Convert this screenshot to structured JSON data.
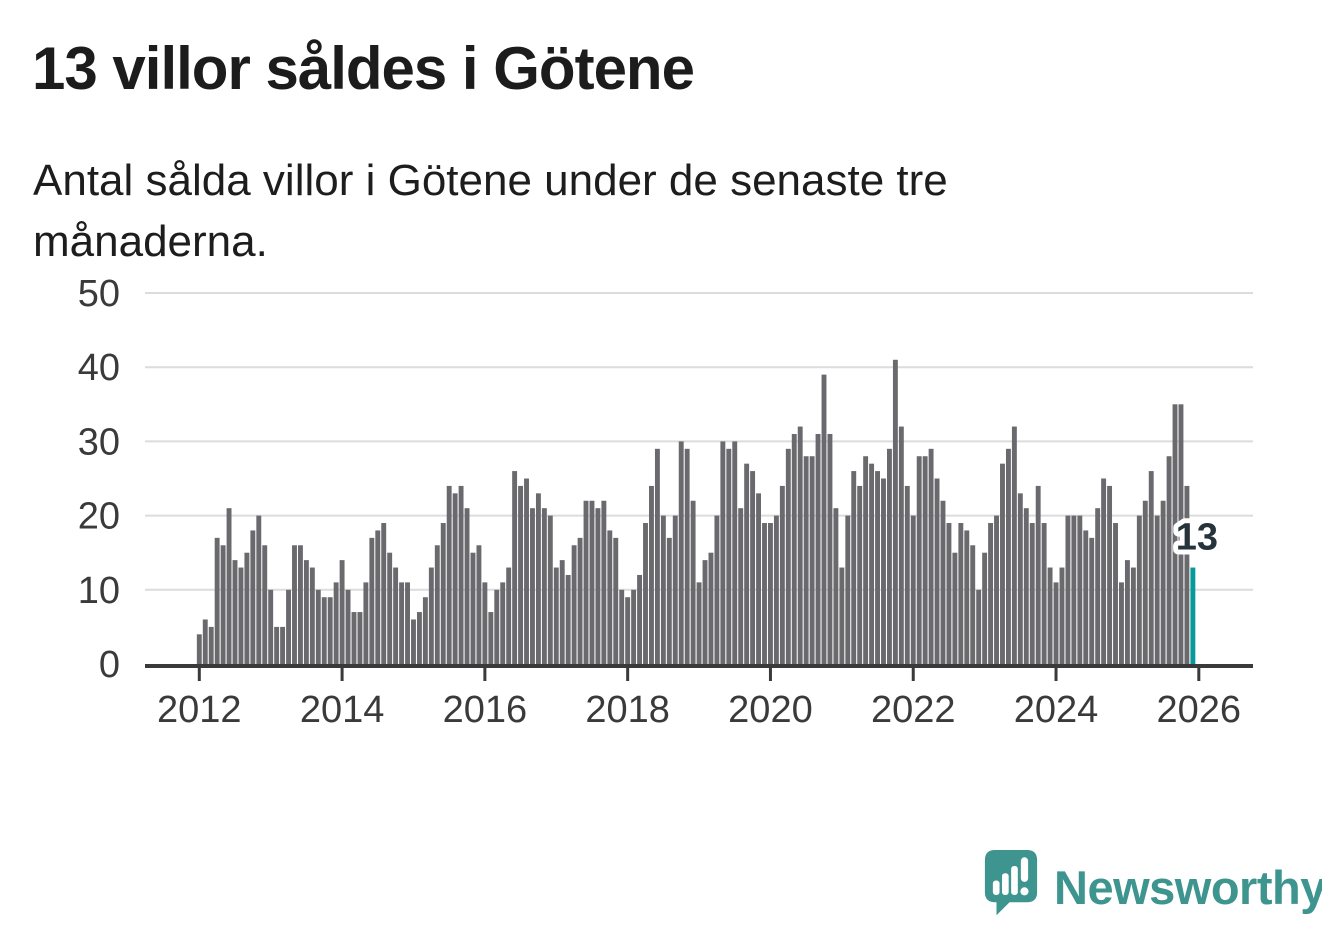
{
  "header": {
    "title": "13 villor såldes i Götene",
    "subtitle_line1": "Antal sålda villor i Götene under de senaste tre",
    "subtitle_line2": "månaderna."
  },
  "chart_data": {
    "type": "bar",
    "title": "13 villor såldes i Götene",
    "xlabel": "",
    "ylabel": "",
    "x_unit": "month",
    "start": "2012-01",
    "end": "2025-12",
    "values": [
      4,
      6,
      5,
      17,
      16,
      21,
      14,
      13,
      15,
      18,
      20,
      16,
      10,
      5,
      5,
      10,
      16,
      16,
      14,
      13,
      10,
      9,
      9,
      11,
      14,
      10,
      7,
      7,
      11,
      17,
      18,
      19,
      15,
      13,
      11,
      11,
      6,
      7,
      9,
      13,
      16,
      19,
      24,
      23,
      24,
      21,
      15,
      16,
      11,
      7,
      10,
      11,
      13,
      26,
      24,
      25,
      21,
      23,
      21,
      20,
      13,
      14,
      12,
      16,
      17,
      22,
      22,
      21,
      22,
      18,
      17,
      10,
      9,
      10,
      12,
      19,
      24,
      29,
      20,
      17,
      20,
      30,
      29,
      22,
      11,
      14,
      15,
      20,
      30,
      29,
      30,
      21,
      27,
      26,
      23,
      19,
      19,
      20,
      24,
      29,
      31,
      32,
      28,
      28,
      31,
      39,
      31,
      21,
      13,
      20,
      26,
      24,
      28,
      27,
      26,
      25,
      29,
      41,
      32,
      24,
      20,
      28,
      28,
      29,
      25,
      22,
      19,
      15,
      19,
      18,
      16,
      10,
      15,
      19,
      20,
      27,
      29,
      32,
      23,
      21,
      19,
      24,
      19,
      13,
      11,
      13,
      20,
      20,
      20,
      18,
      17,
      21,
      25,
      24,
      19,
      11,
      14,
      13,
      20,
      22,
      26,
      20,
      22,
      28,
      35,
      35,
      24,
      13
    ],
    "ylim": [
      0,
      50
    ],
    "yticks": [
      0,
      10,
      20,
      30,
      40,
      50
    ],
    "xtick_labels": [
      "2012",
      "2014",
      "2016",
      "2018",
      "2020",
      "2022",
      "2024",
      "2026"
    ],
    "grid": true,
    "legend": "none",
    "bar_color": "#69696e",
    "highlight_color": "#089a9b",
    "axis_color": "#3a3a3a",
    "grid_color": "#dcdcdc",
    "tick_text_color": "#3a3a3a",
    "annotation": {
      "label": "13",
      "target": "last-bar",
      "text_color": "#25333b",
      "halo_color": "#ffffff"
    }
  },
  "footer": {
    "brand": "Newsworthy",
    "brand_color": "#3e948e"
  }
}
